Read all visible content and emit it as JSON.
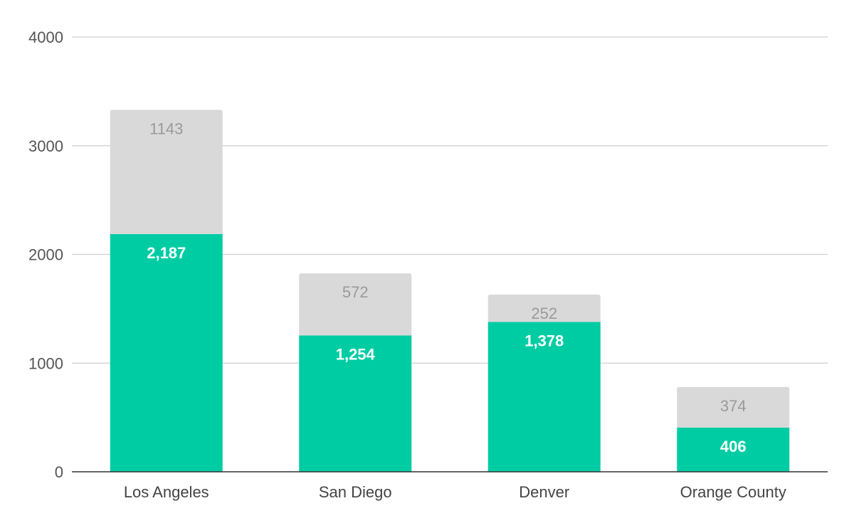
{
  "chart_data": {
    "type": "bar",
    "stacked": true,
    "categories": [
      "Los Angeles",
      "San Diego",
      "Denver",
      "Orange County"
    ],
    "series": [
      {
        "values": [
          2187,
          1254,
          1378,
          406
        ],
        "labels": [
          "2,187",
          "1,254",
          "1,378",
          "406"
        ],
        "color": "#00cca4"
      },
      {
        "values": [
          1143,
          572,
          252,
          374
        ],
        "labels": [
          "1143",
          "572",
          "252",
          "374"
        ],
        "color": "#d9d9d9"
      }
    ],
    "ylim": [
      0,
      4000
    ],
    "yticks": [
      "0",
      "1000",
      "2000",
      "3000",
      "4000"
    ],
    "ytick_values": [
      0,
      1000,
      2000,
      3000,
      4000
    ],
    "grid": true,
    "legend": "none",
    "title": "",
    "xlabel": "",
    "ylabel": ""
  }
}
